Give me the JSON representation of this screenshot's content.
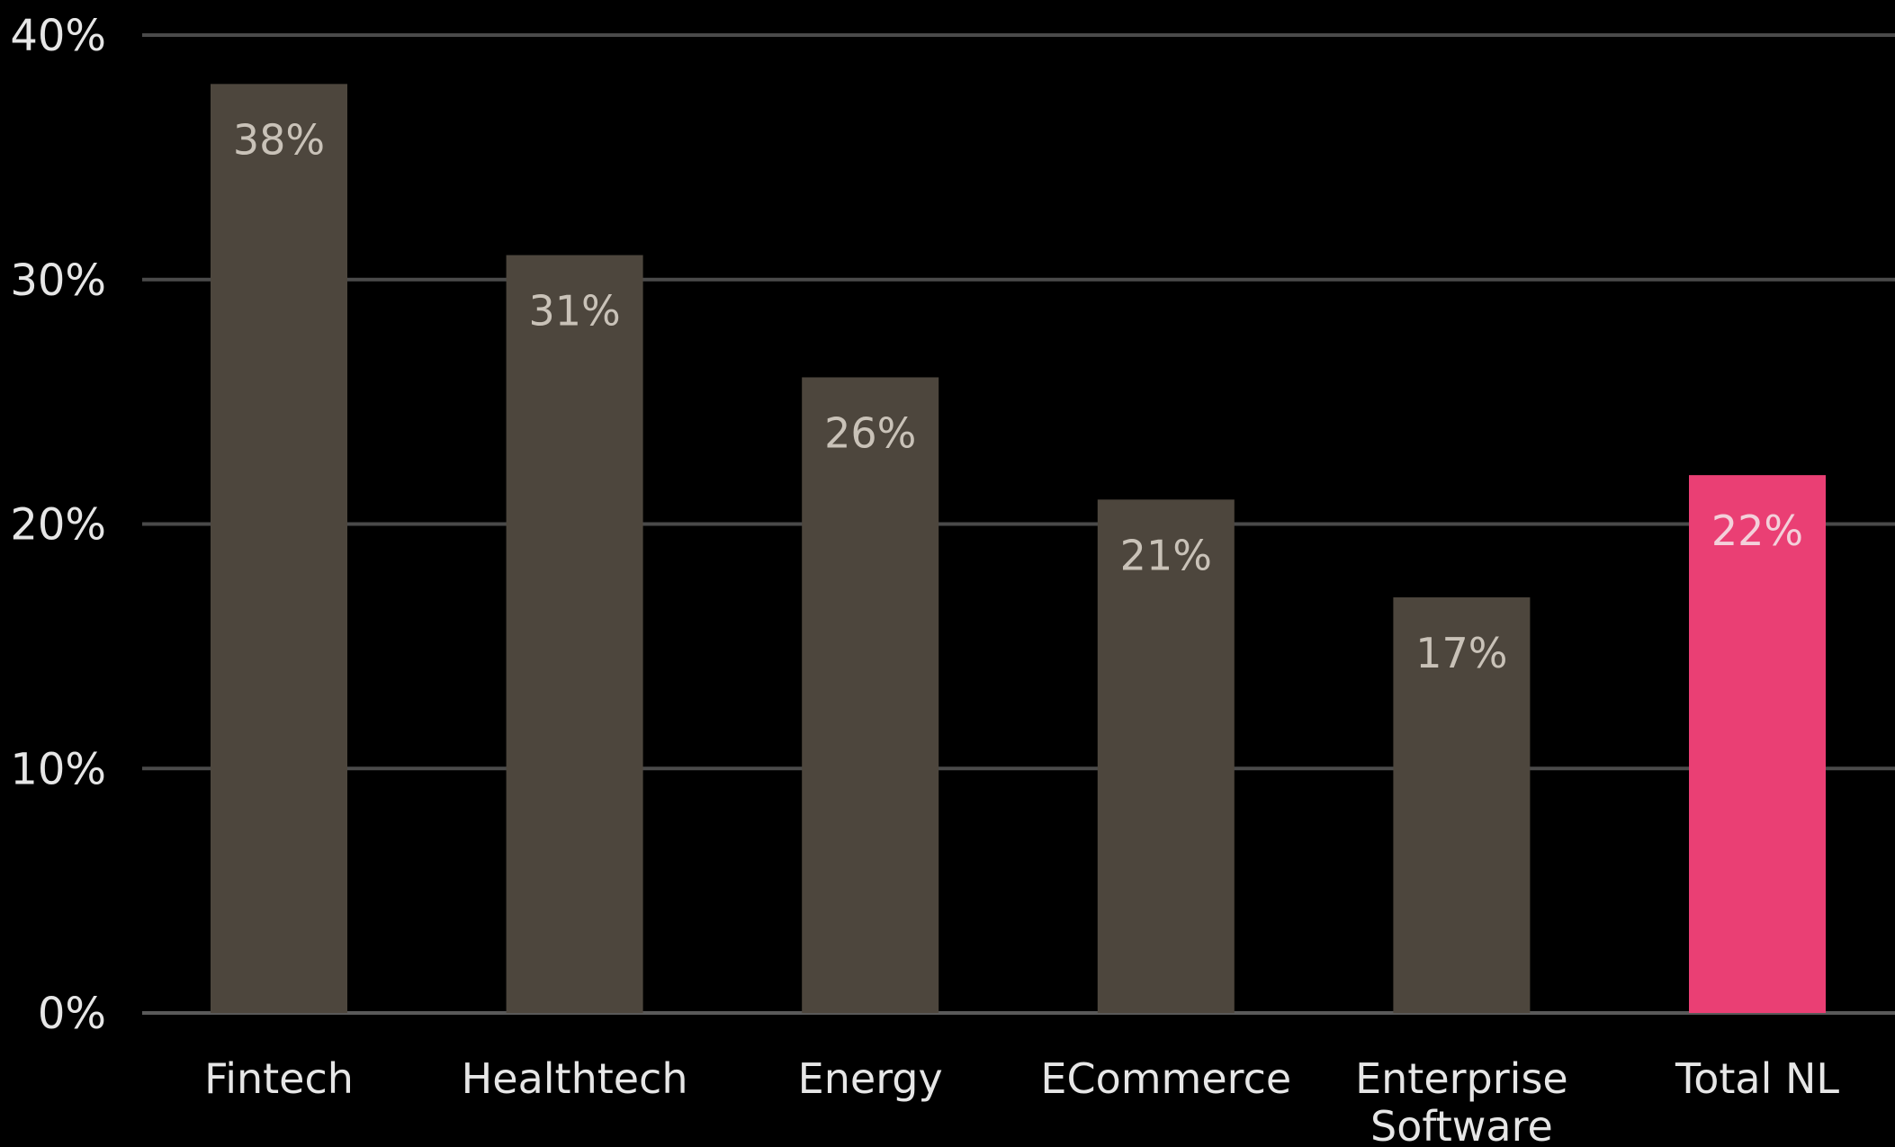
{
  "chart_data": {
    "type": "bar",
    "title": "",
    "xlabel": "",
    "ylabel": "",
    "categories": [
      [
        "Fintech"
      ],
      [
        "Healthtech"
      ],
      [
        "Energy"
      ],
      [
        "ECommerce"
      ],
      [
        "Enterprise",
        "Software"
      ],
      [
        "Total NL"
      ]
    ],
    "values": [
      38,
      31,
      26,
      21,
      17,
      22
    ],
    "value_labels": [
      "38%",
      "31%",
      "26%",
      "21%",
      "17%",
      "22%"
    ],
    "highlight_index": 5,
    "ylim": [
      0,
      40
    ],
    "yticks": [
      0,
      10,
      20,
      30,
      40
    ],
    "ytick_labels": [
      "0%",
      "10%",
      "20%",
      "30%",
      "40%"
    ],
    "grid": true,
    "legend": "none"
  },
  "colors": {
    "background": "#000000",
    "bar": "#4d463d",
    "highlight_bar": "#ea3f74",
    "grid": "#4a4a4a",
    "text": "#e6e6e6",
    "bar_label": "#c9c2b8",
    "highlight_label": "#f3d0da"
  }
}
